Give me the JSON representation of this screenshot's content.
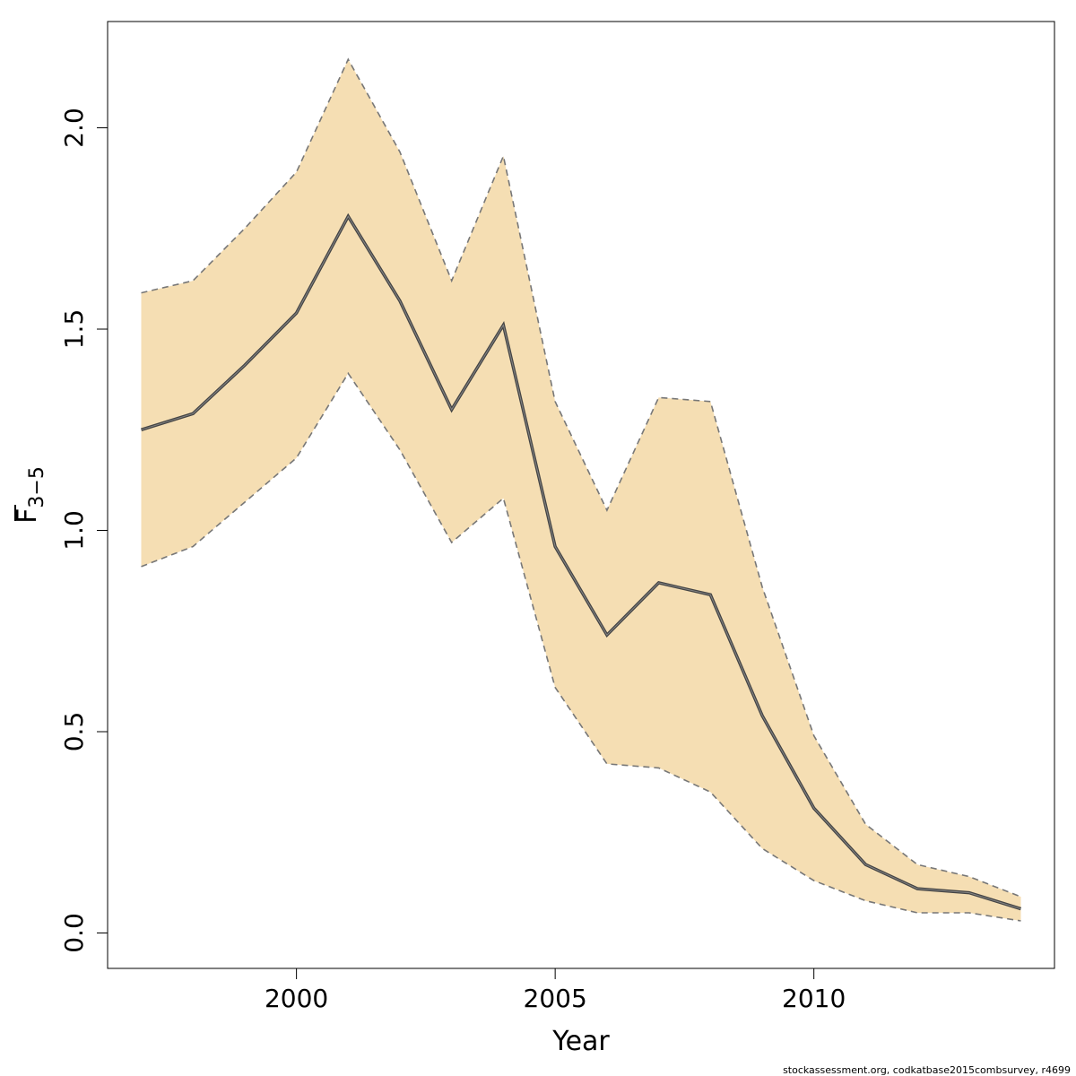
{
  "chart_data": {
    "type": "area",
    "xlabel": "Year",
    "ylabel_main": "F",
    "ylabel_sub": "3−5",
    "xlim": [
      1996.35,
      2014.65
    ],
    "ylim": [
      -0.088,
      2.264
    ],
    "x_ticks": [
      2000,
      2005,
      2010
    ],
    "y_ticks": [
      0.0,
      0.5,
      1.0,
      1.5,
      2.0
    ],
    "x_tick_labels": [
      "2000",
      "2005",
      "2010"
    ],
    "y_tick_labels": [
      "0.0",
      "0.5",
      "1.0",
      "1.5",
      "2.0"
    ],
    "x": [
      1997,
      1998,
      1999,
      2000,
      2001,
      2002,
      2003,
      2004,
      2005,
      2006,
      2007,
      2008,
      2009,
      2010,
      2011,
      2012,
      2013,
      2014
    ],
    "estimate": [
      1.25,
      1.29,
      1.41,
      1.54,
      1.78,
      1.57,
      1.3,
      1.51,
      0.96,
      0.74,
      0.87,
      0.84,
      0.54,
      0.31,
      0.17,
      0.11,
      0.1,
      0.06
    ],
    "upper": [
      1.59,
      1.62,
      1.75,
      1.89,
      2.17,
      1.94,
      1.62,
      1.93,
      1.32,
      1.05,
      1.33,
      1.32,
      0.86,
      0.49,
      0.27,
      0.17,
      0.14,
      0.09
    ],
    "lower": [
      0.91,
      0.96,
      1.07,
      1.18,
      1.39,
      1.2,
      0.97,
      1.08,
      0.61,
      0.42,
      0.41,
      0.35,
      0.21,
      0.13,
      0.08,
      0.05,
      0.05,
      0.03
    ],
    "band_color": "#f5deb3",
    "line_color": "#444444",
    "bound_color": "#777777",
    "grid": false
  },
  "footer": "stockassessment.org, codkatbase2015combsurvey, r4699"
}
